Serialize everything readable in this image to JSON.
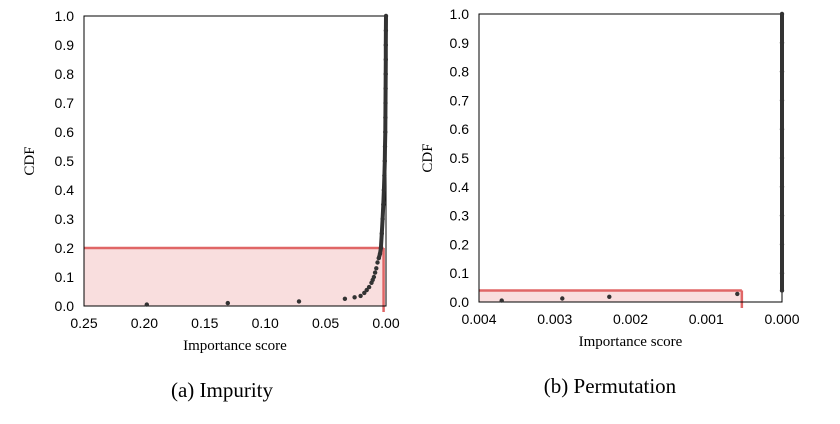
{
  "chart_data": [
    {
      "type": "scatter",
      "caption": "(a) Impurity",
      "xlabel": "Importance score",
      "ylabel": "CDF",
      "x_reversed": true,
      "xlim": [
        0.25,
        0.0
      ],
      "ylim": [
        0.0,
        1.0
      ],
      "xticks": [
        "0.25",
        "0.20",
        "0.15",
        "0.10",
        "0.05",
        "0.00"
      ],
      "xtick_values": [
        0.25,
        0.2,
        0.15,
        0.1,
        0.05,
        0.0
      ],
      "yticks": [
        "0.0",
        "0.1",
        "0.2",
        "0.3",
        "0.4",
        "0.5",
        "0.6",
        "0.7",
        "0.8",
        "0.9",
        "1.0"
      ],
      "ytick_values": [
        0.0,
        0.1,
        0.2,
        0.3,
        0.4,
        0.5,
        0.6,
        0.7,
        0.8,
        0.9,
        1.0
      ],
      "grid": false,
      "legend": "none",
      "marker_color": "#333333",
      "highlight": {
        "color": "#e06666",
        "fill": "#f9dede",
        "x_threshold": 0.002,
        "y_threshold": 0.2
      },
      "series": [
        {
          "points": [
            [
              0.198,
              0.005
            ],
            [
              0.131,
              0.01
            ],
            [
              0.072,
              0.016
            ],
            [
              0.034,
              0.025
            ],
            [
              0.026,
              0.03
            ],
            [
              0.021,
              0.035
            ],
            [
              0.018,
              0.045
            ],
            [
              0.016,
              0.055
            ],
            [
              0.014,
              0.065
            ],
            [
              0.012,
              0.08
            ],
            [
              0.011,
              0.09
            ],
            [
              0.01,
              0.1
            ],
            [
              0.009,
              0.115
            ],
            [
              0.008,
              0.13
            ],
            [
              0.007,
              0.15
            ],
            [
              0.006,
              0.165
            ],
            [
              0.005,
              0.18
            ],
            [
              0.0042,
              0.2
            ],
            [
              0.0035,
              0.25
            ],
            [
              0.0028,
              0.3
            ],
            [
              0.0022,
              0.35
            ],
            [
              0.0017,
              0.4
            ],
            [
              0.0013,
              0.45
            ],
            [
              0.001,
              0.5
            ],
            [
              0.0008,
              0.55
            ],
            [
              0.0006,
              0.6
            ],
            [
              0.0005,
              0.65
            ],
            [
              0.0004,
              0.7
            ],
            [
              0.0003,
              0.75
            ],
            [
              0.00025,
              0.8
            ],
            [
              0.0002,
              0.85
            ],
            [
              0.00015,
              0.9
            ],
            [
              0.0001,
              0.95
            ],
            [
              0.0,
              1.0
            ]
          ]
        }
      ]
    },
    {
      "type": "scatter",
      "caption": "(b) Permutation",
      "xlabel": "Importance score",
      "ylabel": "CDF",
      "x_reversed": true,
      "xlim": [
        0.004,
        0.0
      ],
      "ylim": [
        0.0,
        1.0
      ],
      "xticks": [
        "0.004",
        "0.003",
        "0.002",
        "0.001",
        "0.000"
      ],
      "xtick_values": [
        0.004,
        0.003,
        0.002,
        0.001,
        0.0
      ],
      "yticks": [
        "0.0",
        "0.1",
        "0.2",
        "0.3",
        "0.4",
        "0.5",
        "0.6",
        "0.7",
        "0.8",
        "0.9",
        "1.0"
      ],
      "ytick_values": [
        0.0,
        0.1,
        0.2,
        0.3,
        0.4,
        0.5,
        0.6,
        0.7,
        0.8,
        0.9,
        1.0
      ],
      "grid": false,
      "legend": "none",
      "marker_color": "#333333",
      "highlight": {
        "color": "#e06666",
        "fill": "#f9dede",
        "x_threshold": 0.00053,
        "y_threshold": 0.04
      },
      "series": [
        {
          "points": [
            [
              0.0037,
              0.005
            ],
            [
              0.0029,
              0.012
            ],
            [
              0.00228,
              0.018
            ],
            [
              0.00059,
              0.028
            ],
            [
              0.0,
              0.04
            ],
            [
              0.0,
              0.1
            ],
            [
              0.0,
              0.2
            ],
            [
              0.0,
              0.3
            ],
            [
              0.0,
              0.4
            ],
            [
              0.0,
              0.5
            ],
            [
              0.0,
              0.6
            ],
            [
              0.0,
              0.7
            ],
            [
              0.0,
              0.8
            ],
            [
              0.0,
              0.9
            ],
            [
              0.0,
              1.0
            ]
          ]
        }
      ]
    }
  ]
}
